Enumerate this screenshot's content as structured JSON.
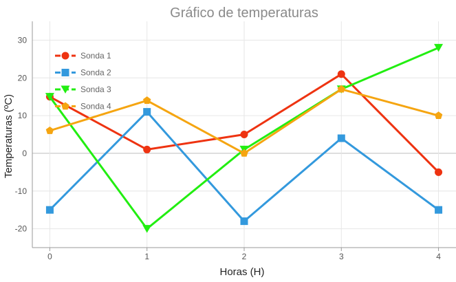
{
  "chart_data": {
    "type": "line",
    "title": "Gráfico de temperaturas",
    "xlabel": "Horas (H)",
    "ylabel": "Temperaturas (ºC)",
    "x": [
      0,
      1,
      2,
      3,
      4
    ],
    "xlim": [
      -0.18,
      4.18
    ],
    "ylim": [
      -25,
      35
    ],
    "yticks": [
      -20,
      -10,
      0,
      10,
      20,
      30
    ],
    "grid": true,
    "legend_position": "top-left",
    "series": [
      {
        "name": "Sonda 1",
        "values": [
          15,
          1,
          5,
          21,
          -5
        ],
        "color": "#ee3311",
        "marker": "circle"
      },
      {
        "name": "Sonda 2",
        "values": [
          -15,
          11,
          -18,
          4,
          -15
        ],
        "color": "#3399dd",
        "marker": "square"
      },
      {
        "name": "Sonda 3",
        "values": [
          15,
          -20,
          1,
          17,
          28
        ],
        "color": "#22ee11",
        "marker": "triangle-down"
      },
      {
        "name": "Sonda 4",
        "values": [
          6,
          14,
          0,
          17,
          10
        ],
        "color": "#f5a511",
        "marker": "pentagon"
      }
    ]
  }
}
